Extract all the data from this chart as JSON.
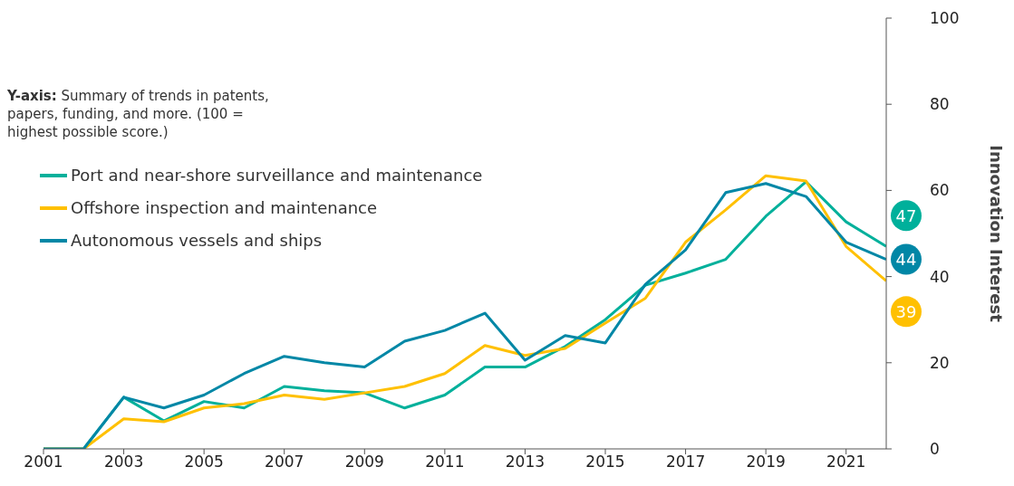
{
  "chart_data": {
    "type": "line",
    "ylabel": "Innovation Interest",
    "annotations": [
      "Y-axis: Summary of trends in patents, papers, funding, and more. (100 = highest possible score.)"
    ],
    "x": [
      2001,
      2002,
      2003,
      2004,
      2005,
      2006,
      2007,
      2008,
      2009,
      2010,
      2011,
      2012,
      2013,
      2014,
      2015,
      2016,
      2017,
      2018,
      2019,
      2020,
      2021,
      2022
    ],
    "series": [
      {
        "name": "Port and near-shore surveillance and maintenance",
        "color": "#00b09b",
        "values": [
          0,
          0,
          12,
          6.5,
          11,
          9.5,
          14.5,
          13.5,
          13,
          9.5,
          12.5,
          19,
          19,
          23.8,
          30,
          38,
          40.8,
          44,
          54,
          62,
          52.7,
          47
        ],
        "value_labels": [
          null,
          null,
          null,
          null,
          null,
          null,
          null,
          null,
          null,
          null,
          null,
          null,
          null,
          null,
          null,
          null,
          null,
          null,
          null,
          null,
          null,
          "47"
        ]
      },
      {
        "name": "Offshore inspection and maintenance",
        "color": "#ffc000",
        "values": [
          0,
          0,
          7,
          6.3,
          9.5,
          10.5,
          12.5,
          11.5,
          13,
          14.5,
          17.5,
          24,
          21.7,
          23.3,
          29.2,
          35,
          48,
          55.5,
          63.4,
          62.2,
          47,
          39
        ],
        "value_labels": [
          null,
          null,
          null,
          null,
          null,
          null,
          null,
          null,
          null,
          null,
          null,
          null,
          null,
          null,
          null,
          null,
          null,
          null,
          null,
          null,
          null,
          "39"
        ]
      },
      {
        "name": "Autonomous vessels and ships",
        "color": "#0087a6",
        "values": [
          0,
          0,
          12,
          9.5,
          12.5,
          17.5,
          21.5,
          20,
          19,
          25,
          27.5,
          31.5,
          20.6,
          26.3,
          24.6,
          38.2,
          46.2,
          59.5,
          61.6,
          58.6,
          48,
          44
        ],
        "value_labels": [
          null,
          null,
          null,
          null,
          null,
          null,
          null,
          null,
          null,
          null,
          null,
          null,
          null,
          null,
          null,
          null,
          null,
          null,
          null,
          null,
          null,
          "44"
        ]
      }
    ],
    "xlim": [
      2001,
      2022
    ],
    "xticks": [
      2001,
      2003,
      2005,
      2007,
      2009,
      2011,
      2013,
      2015,
      2017,
      2019,
      2021
    ],
    "ylim": [
      0,
      100
    ],
    "yticks": [
      0,
      20,
      40,
      60,
      80,
      100
    ],
    "grid": false,
    "legend": "top left",
    "marker": "none",
    "line_style": "solid"
  }
}
